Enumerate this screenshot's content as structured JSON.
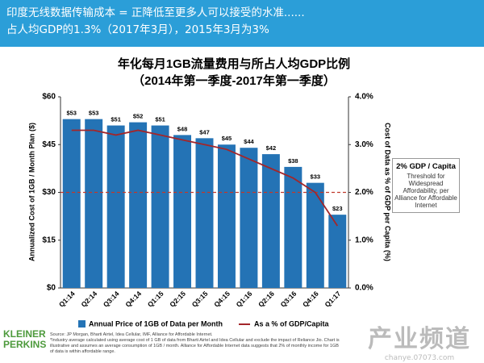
{
  "header": {
    "lines": [
      "印度无线数据传输成本 = 正降低至更多人可以接受的水准......",
      "占人均GDP的1.3%（2017年3月），2015年3月为3%"
    ]
  },
  "chart_data": {
    "type": "bar_line",
    "title": "年化每月1GB流量费用与所占人均GDP比例",
    "subtitle": "（2014年第一季度-2017年第一季度）",
    "categories": [
      "Q1:14",
      "Q2:14",
      "Q3:14",
      "Q4:14",
      "Q1:15",
      "Q2:15",
      "Q3:15",
      "Q4:15",
      "Q1:16",
      "Q2:16",
      "Q3:16",
      "Q4:16",
      "Q1:17"
    ],
    "series": [
      {
        "name": "Annual Price of 1GB of Data per Month",
        "color": "#2473b5",
        "values": [
          53,
          53,
          51,
          52,
          51,
          48,
          47,
          45,
          44,
          42,
          38,
          33,
          23
        ],
        "value_labels": [
          "$53",
          "$53",
          "$51",
          "$52",
          "$51",
          "$48",
          "$47",
          "$45",
          "$44",
          "$42",
          "$38",
          "$33",
          "$23"
        ]
      },
      {
        "name": "As a % of GDP/Capita",
        "color": "#a3262a",
        "axis": "y2",
        "values": [
          3.3,
          3.3,
          3.2,
          3.3,
          3.2,
          3.1,
          3.0,
          2.9,
          2.7,
          2.5,
          2.3,
          2.0,
          1.3
        ]
      }
    ],
    "ylabel": "Annualized Cost of 1GB / Month Plan ($)",
    "y2label": "Cost of Data as % of GDP per Capita (%)",
    "ylim": [
      0,
      60
    ],
    "yticks": [
      {
        "value": 0,
        "label": "$0"
      },
      {
        "value": 15,
        "label": "$15"
      },
      {
        "value": 30,
        "label": "$30"
      },
      {
        "value": 45,
        "label": "$45"
      },
      {
        "value": 60,
        "label": "$60"
      }
    ],
    "y2lim": [
      0,
      4
    ],
    "y2ticks": [
      {
        "value": 0,
        "label": "0.0%"
      },
      {
        "value": 1,
        "label": "1.0%"
      },
      {
        "value": 2,
        "label": "2.0%"
      },
      {
        "value": 3,
        "label": "3.0%"
      },
      {
        "value": 4,
        "label": "4.0%"
      }
    ],
    "reference_line": {
      "value": 2,
      "axis": "y2",
      "color": "#c0392b"
    },
    "annotation": {
      "title": "2% GDP / Capita",
      "text": "Threshold for Widespread Affordability, per Alliance for Affordable Internet"
    },
    "legend": "bottom"
  },
  "footer": {
    "logo": "KLEINER PERKINS",
    "source": "Source: JP Morgan, Bharti Airtel, Idea Cellular, IMF, Alliance for Affordable Internet.",
    "note": "*Industry average calculated using average cost of 1 GB of data from Bharti Airtel and Idea Cellular and exclude the impact of Reliance Jio. Chart is illustrative and assumes an average consumption of 1GB / month. Alliance for Affordable Internet data suggests that 2% of monthly income for 1GB of data is within affordable range.",
    "watermark": "产业频道",
    "watermark_url": "chanye.07073.com"
  }
}
